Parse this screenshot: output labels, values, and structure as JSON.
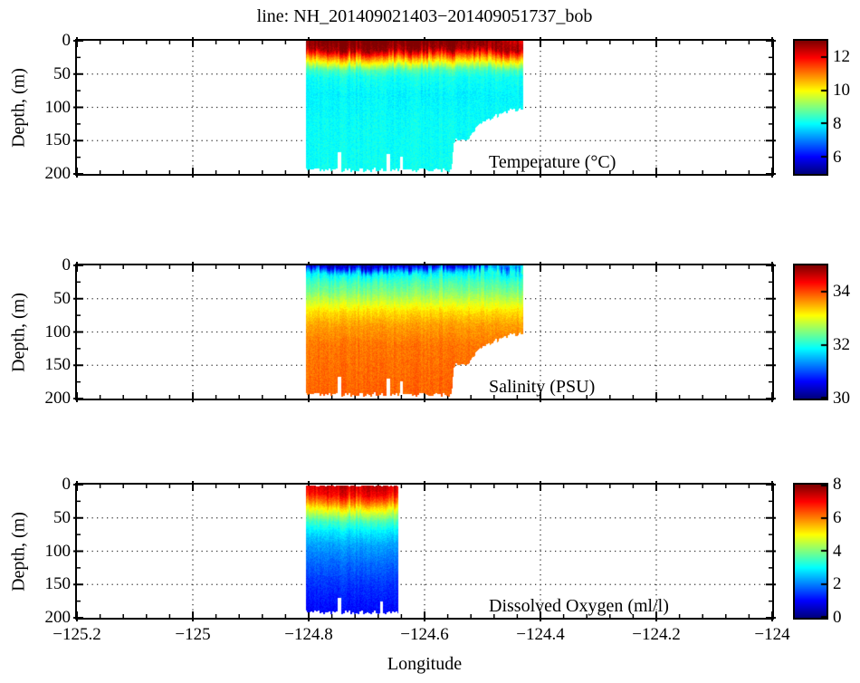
{
  "title": "line: NH_201409021403−201409051737_bob",
  "xlabel": "Longitude",
  "ylabel": "Depth, (m)",
  "colors": {
    "background": "#ffffff",
    "axis": "#000000",
    "grid": "#3a3a3a"
  },
  "chart_data": {
    "type": "heatmap",
    "title": "line: NH_201409021403−201409051737_bob",
    "colormap": "jet",
    "grid": "dotted",
    "x_axis": {
      "label": "Longitude",
      "range": [
        -125.2,
        -124.0
      ],
      "major_ticks": [
        -125.2,
        -125.0,
        -124.8,
        -124.6,
        -124.4,
        -124.2,
        -124.0
      ],
      "tick_labels": [
        "−125.2",
        "−125",
        "−124.8",
        "−124.6",
        "−124.4",
        "−124.2",
        "−124"
      ],
      "minor_tick_step": 0.04
    },
    "y_axis": {
      "label": "Depth, (m)",
      "range": [
        0,
        200
      ],
      "major_ticks": [
        0,
        50,
        100,
        150,
        200
      ],
      "minor_tick_step": 25
    },
    "panels": [
      {
        "name": "temperature",
        "label": "Temperature (°C)",
        "colorbar": {
          "min": 5,
          "max": 13,
          "ticks": [
            12,
            10,
            8,
            6
          ]
        },
        "lon_extent": [
          -124.805,
          -124.43
        ],
        "depth_profile": [
          [
            0,
            13.1
          ],
          [
            14,
            12.7
          ],
          [
            20,
            11.8
          ],
          [
            28,
            10.6
          ],
          [
            36,
            9.6
          ],
          [
            44,
            8.6
          ],
          [
            55,
            8.15
          ],
          [
            80,
            7.95
          ],
          [
            120,
            8.05
          ],
          [
            200,
            8.1
          ]
        ],
        "bottom_profile": [
          [
            -124.805,
            194
          ],
          [
            -124.553,
            194
          ],
          [
            -124.549,
            150
          ],
          [
            -124.527,
            148
          ],
          [
            -124.5,
            122
          ],
          [
            -124.468,
            110
          ],
          [
            -124.45,
            104
          ],
          [
            -124.43,
            102
          ]
        ],
        "gaps": [
          [
            -124.747,
            168,
            4
          ],
          [
            -124.664,
            170,
            4
          ],
          [
            -124.641,
            174,
            3
          ]
        ],
        "surface_adjust": [
          [
            -124.805,
            0
          ],
          [
            -124.5,
            0
          ],
          [
            -124.455,
            -0.6
          ],
          [
            -124.43,
            -0.9
          ]
        ],
        "top_gap": 0
      },
      {
        "name": "salinity",
        "label": "Salinity (PSU)",
        "colorbar": {
          "min": 30,
          "max": 35,
          "ticks": [
            34,
            32,
            30
          ]
        },
        "lon_extent": [
          -124.805,
          -124.43
        ],
        "depth_profile": [
          [
            0,
            30.3
          ],
          [
            5,
            30.9
          ],
          [
            12,
            31.8
          ],
          [
            25,
            32.2
          ],
          [
            40,
            32.5
          ],
          [
            55,
            32.9
          ],
          [
            70,
            33.3
          ],
          [
            90,
            33.6
          ],
          [
            120,
            33.8
          ],
          [
            200,
            33.9
          ]
        ],
        "bottom_profile": [
          [
            -124.805,
            194
          ],
          [
            -124.553,
            194
          ],
          [
            -124.549,
            150
          ],
          [
            -124.527,
            148
          ],
          [
            -124.5,
            122
          ],
          [
            -124.468,
            110
          ],
          [
            -124.45,
            104
          ],
          [
            -124.43,
            102
          ]
        ],
        "gaps": [
          [
            -124.747,
            168,
            4
          ],
          [
            -124.664,
            170,
            4
          ],
          [
            -124.641,
            174,
            3
          ]
        ],
        "surface_adjust": [
          [
            -124.805,
            0
          ],
          [
            -124.52,
            0
          ],
          [
            -124.47,
            0.9
          ],
          [
            -124.43,
            1.3
          ]
        ],
        "top_gap": 0
      },
      {
        "name": "dissolved_oxygen",
        "label": "Dissolved Oxygen (ml/l)",
        "colorbar": {
          "min": 0,
          "max": 8,
          "ticks": [
            8,
            6,
            4,
            2,
            0
          ]
        },
        "lon_extent": [
          -124.805,
          -124.645
        ],
        "depth_profile": [
          [
            0,
            7.5
          ],
          [
            15,
            7.0
          ],
          [
            25,
            6.2
          ],
          [
            35,
            5.2
          ],
          [
            45,
            4.4
          ],
          [
            55,
            3.6
          ],
          [
            70,
            2.9
          ],
          [
            90,
            2.3
          ],
          [
            120,
            1.8
          ],
          [
            150,
            1.4
          ],
          [
            195,
            1.0
          ]
        ],
        "bottom_profile": [
          [
            -124.805,
            192
          ],
          [
            -124.645,
            192
          ]
        ],
        "gaps": [
          [
            -124.747,
            170,
            4
          ],
          [
            -124.675,
            176,
            3
          ]
        ],
        "surface_adjust": [
          [
            -124.805,
            0
          ],
          [
            -124.645,
            0
          ]
        ],
        "top_gap": 2
      }
    ]
  }
}
